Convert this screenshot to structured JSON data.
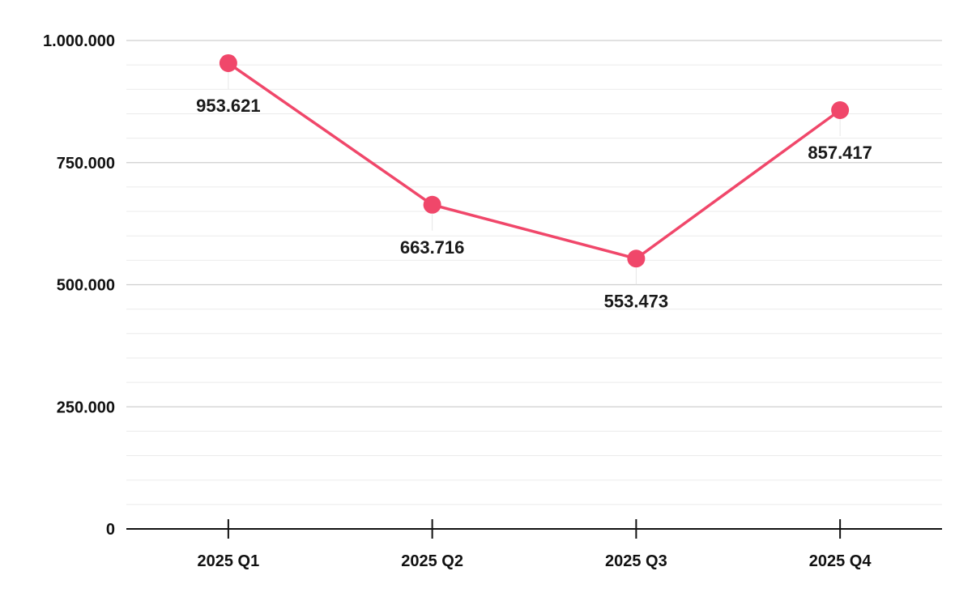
{
  "chart_data": {
    "type": "line",
    "title": "",
    "xlabel": "",
    "ylabel": "",
    "categories": [
      "2025 Q1",
      "2025 Q2",
      "2025 Q3",
      "2025 Q4"
    ],
    "series": [
      {
        "values": [
          953621,
          663716,
          553473,
          857417
        ],
        "data_labels": [
          "953.621",
          "663.716",
          "553.473",
          "857.417"
        ],
        "color": "#f0476a"
      }
    ],
    "ylim": [
      0,
      1000000
    ],
    "y_ticks": [
      0,
      250000,
      500000,
      750000,
      1000000
    ],
    "y_tick_labels": [
      "0",
      "250.000",
      "500.000",
      "750.000",
      "1.000.000"
    ],
    "grid": true,
    "minor_grid": true,
    "legend": "none"
  }
}
